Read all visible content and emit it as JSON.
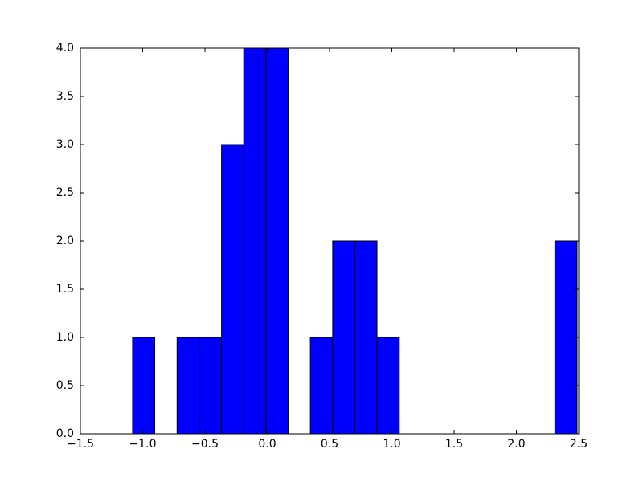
{
  "chart_data": {
    "type": "histogram",
    "bins": [
      -1.081,
      -0.903,
      -0.724,
      -0.546,
      -0.367,
      -0.189,
      -0.011,
      0.168,
      0.346,
      0.525,
      0.703,
      0.881,
      1.06,
      1.238,
      1.417,
      1.595,
      1.773,
      1.952,
      2.13,
      2.309,
      2.487
    ],
    "values": [
      1,
      0,
      1,
      1,
      3,
      4,
      4,
      0,
      1,
      2,
      2,
      1,
      0,
      0,
      0,
      0,
      0,
      0,
      0,
      2
    ],
    "color": "#0000ff",
    "xlim": [
      -1.5,
      2.5
    ],
    "xticks": [
      {
        "value": -1.5,
        "label": "−1.5"
      },
      {
        "value": -1.0,
        "label": "−1.0"
      },
      {
        "value": -0.5,
        "label": "−0.5"
      },
      {
        "value": 0,
        "label": "0.0"
      },
      0.5,
      {
        "value": 1,
        "label": "1.0"
      },
      1.5,
      {
        "value": 2,
        "label": "2.0"
      },
      2.5
    ],
    "ylim": [
      0,
      4
    ],
    "yticks": [
      {
        "value": 0,
        "label": "0.0"
      },
      0.5,
      {
        "value": 1,
        "label": "1.0"
      },
      1.5,
      {
        "value": 2,
        "label": "2.0"
      },
      2.5,
      {
        "value": 3,
        "label": "3.0"
      },
      3.5,
      {
        "value": 4,
        "label": "4.0"
      }
    ],
    "grid": false
  }
}
